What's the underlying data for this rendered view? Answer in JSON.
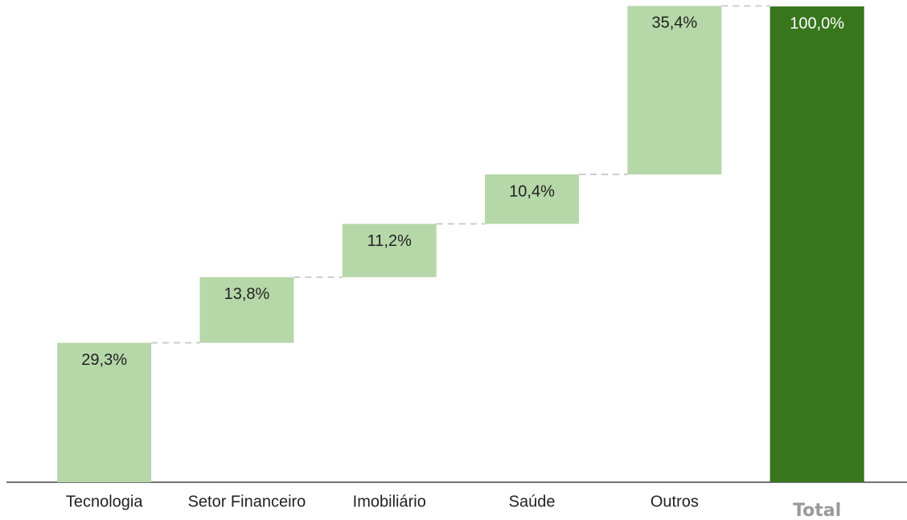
{
  "chart_data": {
    "type": "waterfall",
    "categories": [
      "Tecnologia",
      "Setor Financeiro",
      "Imobiliário",
      "Saúde",
      "Outros"
    ],
    "values": [
      29.3,
      13.8,
      11.2,
      10.4,
      35.4
    ],
    "value_labels": [
      "29,3%",
      "13,8%",
      "11,2%",
      "10,4%",
      "35,4%"
    ],
    "color": "#b6d7a8",
    "total": {
      "label": "Total",
      "value": 100,
      "value_label": "100,0%",
      "color": "#38761d"
    },
    "ylim": [
      0,
      100
    ]
  }
}
